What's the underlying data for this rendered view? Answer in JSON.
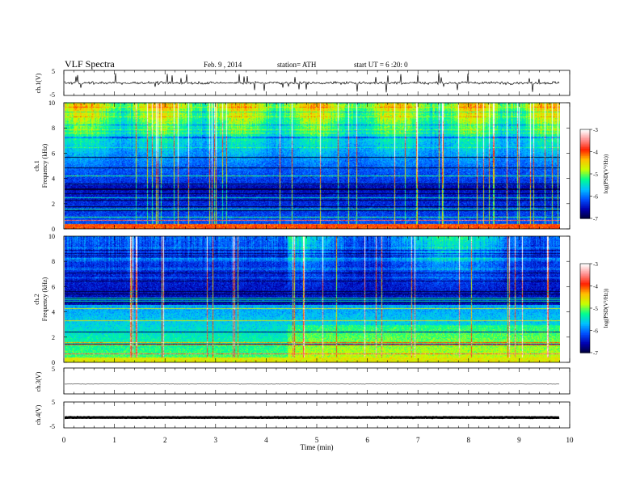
{
  "header": {
    "title": "VLF  Spectra",
    "date": "Feb. 9  , 2014",
    "station": "station= ATH",
    "start": "start  UT  =   6  :20: 0"
  },
  "chart_data": [
    {
      "type": "line",
      "ylabel": "ch.1(V)",
      "ylim": [
        -5,
        5
      ],
      "yticks": [
        "5",
        "-5"
      ],
      "baseline": 0,
      "noise": "wideband, strong impulsive spikes"
    },
    {
      "type": "heatmap",
      "ylabel": "Frequency  (kHz)",
      "channel_label": "ch.1",
      "yticks": [
        "0",
        "2",
        "4",
        "6",
        "8",
        "10"
      ],
      "ylim": [
        0,
        10
      ],
      "colorbar": {
        "label": "log(PSD(V²/Hz))",
        "ticks": [
          "-3",
          "-4",
          "-5",
          "-6",
          "-7"
        ],
        "range": [
          -7,
          -3
        ]
      }
    },
    {
      "type": "heatmap",
      "ylabel": "Frequency  (kHz)",
      "channel_label": "ch.2",
      "yticks": [
        "0",
        "2",
        "4",
        "6",
        "8",
        "10"
      ],
      "ylim": [
        0,
        10
      ],
      "colorbar": {
        "label": "log(PSD(V²/Hz))",
        "ticks": [
          "-3",
          "-4",
          "-5",
          "-6",
          "-7"
        ],
        "range": [
          -7,
          -3
        ]
      }
    },
    {
      "type": "line",
      "ylabel": "ch.3(V)",
      "ylim": [
        -5,
        5
      ],
      "yticks": [
        "5"
      ],
      "baseline": -1.2
    },
    {
      "type": "line",
      "ylabel": "ch.4(V)",
      "ylim": [
        -5,
        5
      ],
      "yticks": [
        "5",
        "-5"
      ],
      "baseline": -1.0
    }
  ],
  "xaxis": {
    "label": "Time  (min)",
    "ticks": [
      "0",
      "1",
      "2",
      "3",
      "4",
      "5",
      "6",
      "7",
      "8",
      "9",
      "10"
    ],
    "xlim": [
      0,
      10
    ],
    "data_end": 9.8
  },
  "colors": {
    "colormap": [
      "#000033",
      "#0000b0",
      "#0050ff",
      "#00c0ff",
      "#00ff90",
      "#c8ff00",
      "#ffc000",
      "#ff2000",
      "#ff9090",
      "#ffffff"
    ]
  }
}
